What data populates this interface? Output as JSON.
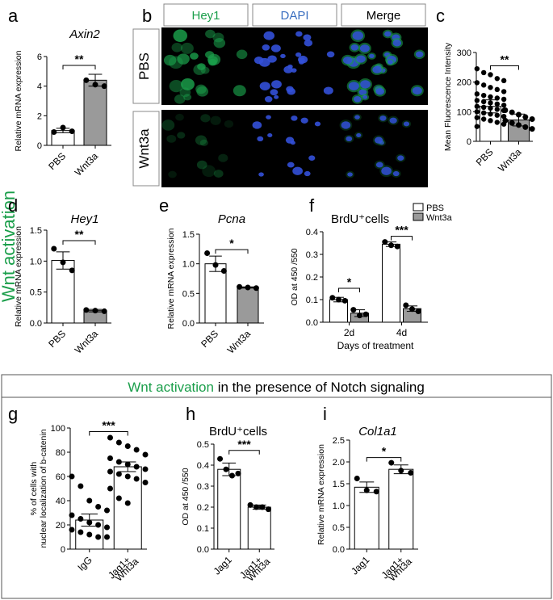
{
  "side_label": "Wnt activation",
  "section_header": {
    "part1": "Wnt activation",
    "part2": " in the presence of Notch signaling"
  },
  "colors": {
    "green": "#1a9e4a",
    "blue": "#3a6ec0",
    "grey_bar": "#9a9a9a",
    "white_bar": "#ffffff"
  },
  "images": {
    "panel_letter": "b",
    "columns": [
      "Hey1",
      "DAPI",
      "Merge"
    ],
    "rows": [
      "PBS",
      "Wnt3a"
    ]
  },
  "chart_data": [
    {
      "id": "a",
      "panel_letter": "a",
      "type": "bar",
      "title": "Axin2",
      "title_italic": true,
      "ylabel": "Relative mRNA expression",
      "ylim": [
        0,
        6
      ],
      "yticks": [
        0,
        2,
        4,
        6
      ],
      "categories": [
        "PBS",
        "Wnt3a"
      ],
      "values": [
        1.0,
        4.4
      ],
      "errors": [
        0.15,
        0.4
      ],
      "points": [
        [
          0.9,
          1.2,
          0.95
        ],
        [
          4.4,
          4.1,
          4.0
        ]
      ],
      "bar_fills": [
        "white",
        "grey"
      ],
      "significance": [
        {
          "from": 0,
          "to": 1,
          "label": "**",
          "y": 5.4
        }
      ]
    },
    {
      "id": "c",
      "panel_letter": "c",
      "type": "bar",
      "title": "",
      "ylabel": "Mean Fluorescence Intensity",
      "ylim": [
        0,
        300
      ],
      "yticks": [
        0,
        100,
        200,
        300
      ],
      "categories": [
        "PBS",
        "Wnt3a"
      ],
      "values": [
        118,
        72
      ],
      "errors": [
        22,
        20
      ],
      "points": [
        [
          245,
          232,
          225,
          212,
          205,
          198,
          190,
          182,
          175,
          168,
          160,
          155,
          150,
          146,
          142,
          138,
          134,
          130,
          126,
          122,
          118,
          115,
          112,
          108,
          104,
          100,
          96,
          92,
          88,
          84,
          80,
          75,
          70,
          64,
          58,
          50
        ],
        [
          105,
          98,
          90,
          82,
          75,
          70,
          62,
          55,
          48,
          42
        ]
      ],
      "bar_fills": [
        "white",
        "grey"
      ],
      "significance": [
        {
          "from": 0,
          "to": 1,
          "label": "**",
          "y": 255
        }
      ]
    },
    {
      "id": "d",
      "panel_letter": "d",
      "type": "bar",
      "title": "Hey1",
      "title_italic": true,
      "ylabel": "Relative mRNA expression",
      "ylim": [
        0,
        1.5
      ],
      "yticks": [
        0.0,
        0.5,
        1.0,
        1.5
      ],
      "categories": [
        "PBS",
        "Wnt3a"
      ],
      "values": [
        1.01,
        0.2
      ],
      "errors": [
        0.14,
        0.02
      ],
      "points": [
        [
          1.2,
          0.98,
          0.85
        ],
        [
          0.21,
          0.2,
          0.19
        ]
      ],
      "bar_fills": [
        "white",
        "grey"
      ],
      "significance": [
        {
          "from": 0,
          "to": 1,
          "label": "**",
          "y": 1.33
        }
      ]
    },
    {
      "id": "e",
      "panel_letter": "e",
      "type": "bar",
      "title": "Pcna",
      "title_italic": true,
      "ylabel": "Relative mRNA expression",
      "ylim": [
        0,
        1.5
      ],
      "yticks": [
        0.0,
        0.5,
        1.0,
        1.5
      ],
      "categories": [
        "PBS",
        "Wnt3a"
      ],
      "values": [
        1.0,
        0.6
      ],
      "errors": [
        0.13,
        0.01
      ],
      "points": [
        [
          1.18,
          0.98,
          0.88
        ],
        [
          0.61,
          0.6,
          0.59
        ]
      ],
      "bar_fills": [
        "white",
        "grey"
      ],
      "significance": [
        {
          "from": 0,
          "to": 1,
          "label": "*",
          "y": 1.24
        }
      ]
    },
    {
      "id": "f",
      "panel_letter": "f",
      "type": "bar",
      "title": "BrdU⁺cells",
      "ylabel": "OD at 450 /550",
      "xlabel": "Days of treatment",
      "ylim": [
        0,
        0.4
      ],
      "yticks": [
        0.0,
        0.1,
        0.2,
        0.3,
        0.4
      ],
      "categories": [
        "2d",
        "4d"
      ],
      "series": [
        {
          "name": "PBS",
          "fill": "white",
          "values": [
            0.1,
            0.345
          ],
          "errors": [
            0.01,
            0.01
          ],
          "points": [
            [
              0.108,
              0.1,
              0.095
            ],
            [
              0.355,
              0.34,
              0.335
            ]
          ]
        },
        {
          "name": "Wnt3a",
          "fill": "grey",
          "values": [
            0.04,
            0.06
          ],
          "errors": [
            0.015,
            0.012
          ],
          "points": [
            [
              0.055,
              0.03,
              0.035
            ],
            [
              0.075,
              0.058,
              0.048
            ]
          ]
        }
      ],
      "legend": "top-left",
      "significance": [
        {
          "group": 0,
          "label": "*",
          "y": 0.15
        },
        {
          "group": 1,
          "label": "***",
          "y": 0.38
        }
      ]
    },
    {
      "id": "g",
      "panel_letter": "g",
      "type": "bar",
      "title": "",
      "ylabel": "% of cells with nuclear localization of b-catenin",
      "ylim": [
        0,
        100
      ],
      "yticks": [
        0,
        20,
        40,
        60,
        80,
        100
      ],
      "categories": [
        "IgG",
        "Jag1+ Wnt3a"
      ],
      "values": [
        24,
        68
      ],
      "errors": [
        5,
        4
      ],
      "points": [
        [
          60,
          52,
          40,
          35,
          32,
          28,
          25,
          22,
          20,
          18,
          16,
          14,
          12,
          10,
          10
        ],
        [
          92,
          88,
          85,
          82,
          78,
          75,
          72,
          70,
          68,
          66,
          64,
          62,
          60,
          58,
          55,
          50,
          42,
          38
        ]
      ],
      "bar_fills": [
        "white",
        "white"
      ],
      "significance": [
        {
          "from": 0,
          "to": 1,
          "label": "***",
          "y": 97
        }
      ]
    },
    {
      "id": "h",
      "panel_letter": "h",
      "type": "bar",
      "title": "BrdU⁺cells",
      "ylabel": "OD at 450 /550",
      "ylim": [
        0.0,
        0.5
      ],
      "yticks": [
        0.0,
        0.1,
        0.2,
        0.3,
        0.4,
        0.5
      ],
      "categories": [
        "Jag1",
        "Jag1+ Wnt3a"
      ],
      "values": [
        0.38,
        0.2
      ],
      "errors": [
        0.03,
        0.01
      ],
      "points": [
        [
          0.43,
          0.38,
          0.35,
          0.36
        ],
        [
          0.21,
          0.2,
          0.2,
          0.19
        ]
      ],
      "bar_fills": [
        "white",
        "white"
      ],
      "significance": [
        {
          "from": 0,
          "to": 1,
          "label": "***",
          "y": 0.47
        }
      ]
    },
    {
      "id": "i",
      "panel_letter": "i",
      "type": "bar",
      "title": "Col1a1",
      "title_italic": true,
      "ylabel": "Relative mRNA expression",
      "ylim": [
        0.0,
        2.5
      ],
      "yticks": [
        0.0,
        0.5,
        1.0,
        1.5,
        2.0,
        2.5
      ],
      "categories": [
        "Jag1",
        "Jag1+ Wnt3a"
      ],
      "values": [
        1.42,
        1.83
      ],
      "errors": [
        0.12,
        0.1
      ],
      "points": [
        [
          1.62,
          1.35,
          1.32
        ],
        [
          1.98,
          1.8,
          1.75
        ]
      ],
      "bar_fills": [
        "white",
        "white"
      ],
      "significance": [
        {
          "from": 0,
          "to": 1,
          "label": "*",
          "y": 2.1
        }
      ]
    }
  ]
}
